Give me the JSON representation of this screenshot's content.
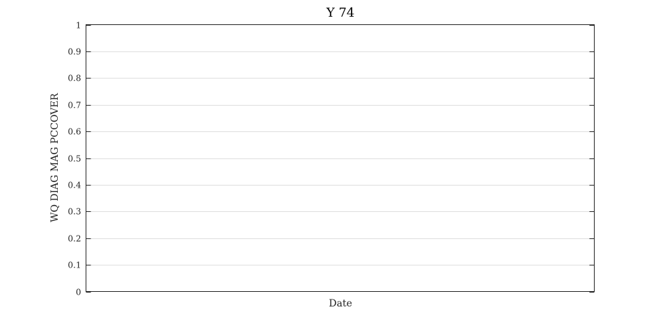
{
  "chart_data": {
    "type": "line",
    "title": "Y 74",
    "xlabel": "Date",
    "ylabel": "WQ DIAG MAG PCCOVER",
    "ylim": [
      0,
      1
    ],
    "yticks": [
      "0",
      "0.1",
      "0.2",
      "0.3",
      "0.4",
      "0.5",
      "0.6",
      "0.7",
      "0.8",
      "0.9",
      "1"
    ],
    "grid": true,
    "series": []
  }
}
